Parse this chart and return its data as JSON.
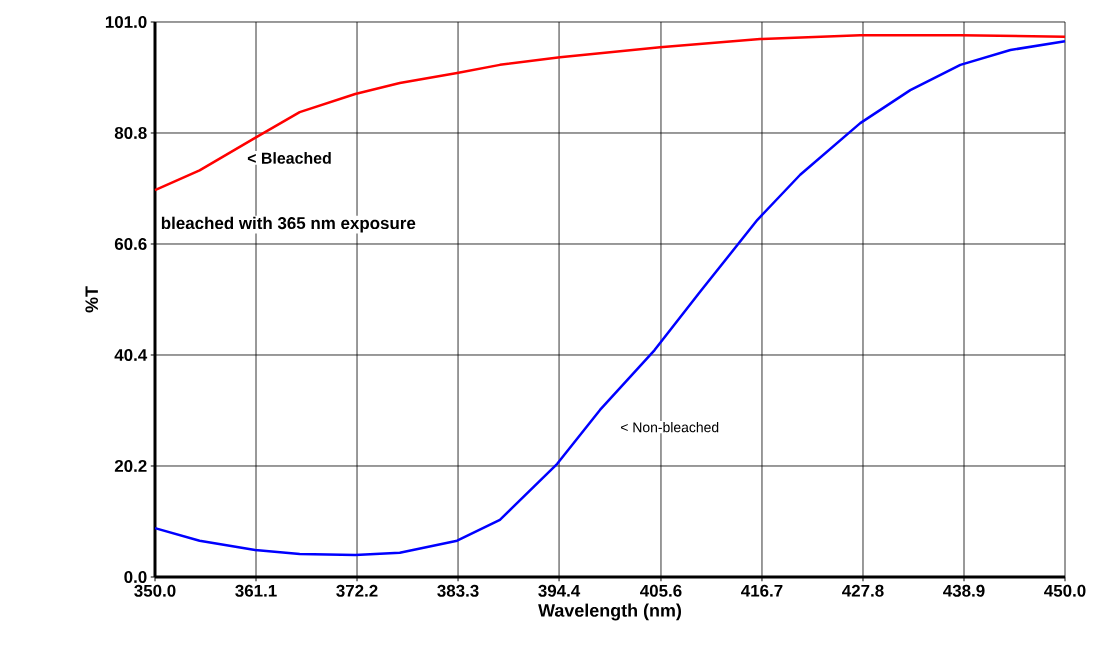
{
  "chart_data": {
    "type": "line",
    "xlabel": "Wavelength (nm)",
    "ylabel": "%T",
    "xlim": [
      350,
      450
    ],
    "ylim": [
      0,
      101
    ],
    "xticks": [
      {
        "value": 350,
        "label": "350.0"
      },
      {
        "value": 361.1,
        "label": "361.1"
      },
      {
        "value": 372.2,
        "label": "372.2"
      },
      {
        "value": 383.3,
        "label": "383.3"
      },
      {
        "value": 394.4,
        "label": "394.4"
      },
      {
        "value": 405.6,
        "label": "405.6"
      },
      {
        "value": 416.7,
        "label": "416.7"
      },
      {
        "value": 427.8,
        "label": "427.8"
      },
      {
        "value": 438.9,
        "label": "438.9"
      },
      {
        "value": 450,
        "label": "450.0"
      }
    ],
    "yticks": [
      {
        "value": 0,
        "label": "0.0"
      },
      {
        "value": 20.2,
        "label": "20.2"
      },
      {
        "value": 40.4,
        "label": "40.4"
      },
      {
        "value": 60.6,
        "label": "60.6"
      },
      {
        "value": 80.8,
        "label": "80.8"
      },
      {
        "value": 101,
        "label": "101.0"
      }
    ],
    "grid": true,
    "marker": "none",
    "line_style": "solid",
    "series": [
      {
        "color": "#ff0000",
        "x": [
          350,
          354.9,
          361.0,
          365.9,
          372.0,
          376.9,
          383.2,
          387.9,
          394.5,
          405.5,
          416.5,
          427.5,
          438.5,
          450
        ],
        "values": [
          70.4,
          74,
          79.9,
          84.6,
          87.9,
          89.9,
          91.7,
          93.2,
          94.6,
          96.4,
          97.9,
          98.6,
          98.6,
          98.3
        ]
      },
      {
        "color": "#0000ff",
        "x": [
          350,
          354.9,
          361.0,
          365.9,
          372.0,
          376.9,
          383.2,
          387.9,
          394.2,
          398.9,
          404.9,
          409.9,
          416.2,
          420.9,
          427.5,
          433.0,
          438.5,
          444.0,
          450
        ],
        "values": [
          8.9,
          6.6,
          4.9,
          4.2,
          4.0,
          4.4,
          6.6,
          10.4,
          20.6,
          30.4,
          41.3,
          51.9,
          65.0,
          73.2,
          82.6,
          88.6,
          93.2,
          95.9,
          97.5
        ]
      }
    ],
    "annotations": [
      "< Bleached",
      "< Non-bleached",
      "bleached with 365 nm exposure"
    ]
  }
}
